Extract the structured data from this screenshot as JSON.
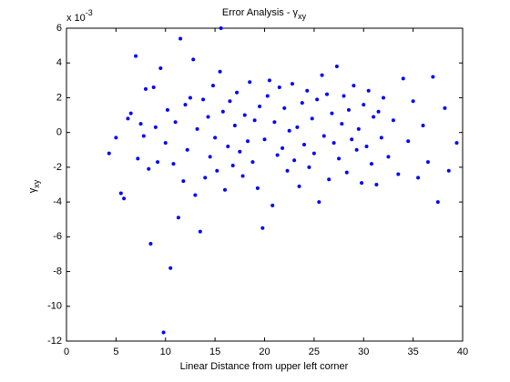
{
  "chart_data": {
    "type": "scatter",
    "title": "Error Analysis - γ",
    "title_subscript": "xy",
    "xlabel": "Linear Distance from upper left corner",
    "ylabel": "γ",
    "ylabel_subscript": "xy",
    "y_multiplier": "x 10",
    "y_multiplier_exponent": "-3",
    "color": "#0000ff",
    "x": [
      4.3,
      5,
      5.5,
      5.8,
      6.2,
      6.5,
      7,
      7.2,
      7.5,
      7.8,
      8,
      8.3,
      8.5,
      8.8,
      9,
      9.2,
      9.5,
      9.8,
      10,
      10.2,
      10.5,
      10.8,
      11,
      11.3,
      11.5,
      11.8,
      12,
      12.2,
      12.5,
      12.8,
      13,
      13.2,
      13.5,
      13.8,
      14,
      14.3,
      14.5,
      14.8,
      15,
      15.2,
      15.5,
      15.6,
      15.8,
      16,
      16.3,
      16.5,
      16.8,
      17,
      17.2,
      17.5,
      17.8,
      18,
      18.3,
      18.5,
      18.8,
      19,
      19.3,
      19.5,
      19.8,
      20,
      20.3,
      20.5,
      20.8,
      21,
      21.3,
      21.5,
      21.8,
      22,
      22.3,
      22.5,
      22.8,
      23,
      23.3,
      23.5,
      23.8,
      24,
      24.3,
      24.5,
      24.8,
      25,
      25.3,
      25.5,
      25.8,
      26,
      26.3,
      26.5,
      26.8,
      27,
      27.3,
      27.5,
      27.8,
      28,
      28.3,
      28.5,
      28.8,
      29,
      29.3,
      29.5,
      29.8,
      30,
      30.3,
      30.5,
      30.8,
      31,
      31.3,
      31.5,
      31.8,
      32,
      32.5,
      33,
      33.5,
      34,
      34.5,
      35,
      35.5,
      36,
      36.5,
      37,
      37.5,
      38.2,
      38.6,
      39.4
    ],
    "y": [
      -1.2,
      -0.3,
      -3.5,
      -3.8,
      0.8,
      1.1,
      4.4,
      -1.5,
      0.5,
      -0.2,
      2.5,
      -2.1,
      -6.4,
      2.6,
      0.3,
      -1.7,
      3.7,
      -11.5,
      -0.6,
      1.3,
      -7.8,
      -1.8,
      0.6,
      -4.9,
      5.4,
      -2.8,
      1.6,
      -1.0,
      2.0,
      4.2,
      -3.6,
      0.2,
      -5.7,
      1.9,
      -2.6,
      0.9,
      -1.4,
      2.7,
      -0.3,
      -2.2,
      3.5,
      6.0,
      1.2,
      -3.3,
      -0.8,
      1.8,
      -1.9,
      0.4,
      2.3,
      -1.1,
      -2.5,
      1.0,
      -0.5,
      2.9,
      -1.7,
      0.7,
      -3.2,
      1.5,
      -5.5,
      -0.4,
      2.1,
      3.0,
      -4.2,
      0.6,
      -1.3,
      2.6,
      -0.9,
      1.4,
      -2.2,
      0.1,
      2.8,
      -1.6,
      0.3,
      -3.1,
      1.7,
      -0.7,
      2.4,
      -2.0,
      0.8,
      -1.2,
      1.9,
      -4.0,
      3.3,
      -0.2,
      2.2,
      -2.7,
      1.1,
      -0.6,
      3.8,
      -1.5,
      0.5,
      2.1,
      -2.3,
      1.3,
      -0.4,
      2.7,
      -1.0,
      0.2,
      -2.9,
      1.6,
      -0.8,
      2.4,
      -1.8,
      0.9,
      -3.0,
      1.2,
      -0.3,
      2.0,
      -1.4,
      0.7,
      -2.4,
      3.1,
      -0.5,
      1.8,
      -2.6,
      0.4,
      -1.7,
      3.2,
      -4.0,
      1.4,
      -2.2,
      -0.6
    ],
    "xlim": [
      0,
      40
    ],
    "xticks": [
      0,
      5,
      10,
      15,
      20,
      25,
      30,
      35,
      40
    ],
    "ylim": [
      -12,
      6
    ],
    "yticks": [
      -12,
      -10,
      -8,
      -6,
      -4,
      -2,
      0,
      2,
      4,
      6
    ]
  }
}
